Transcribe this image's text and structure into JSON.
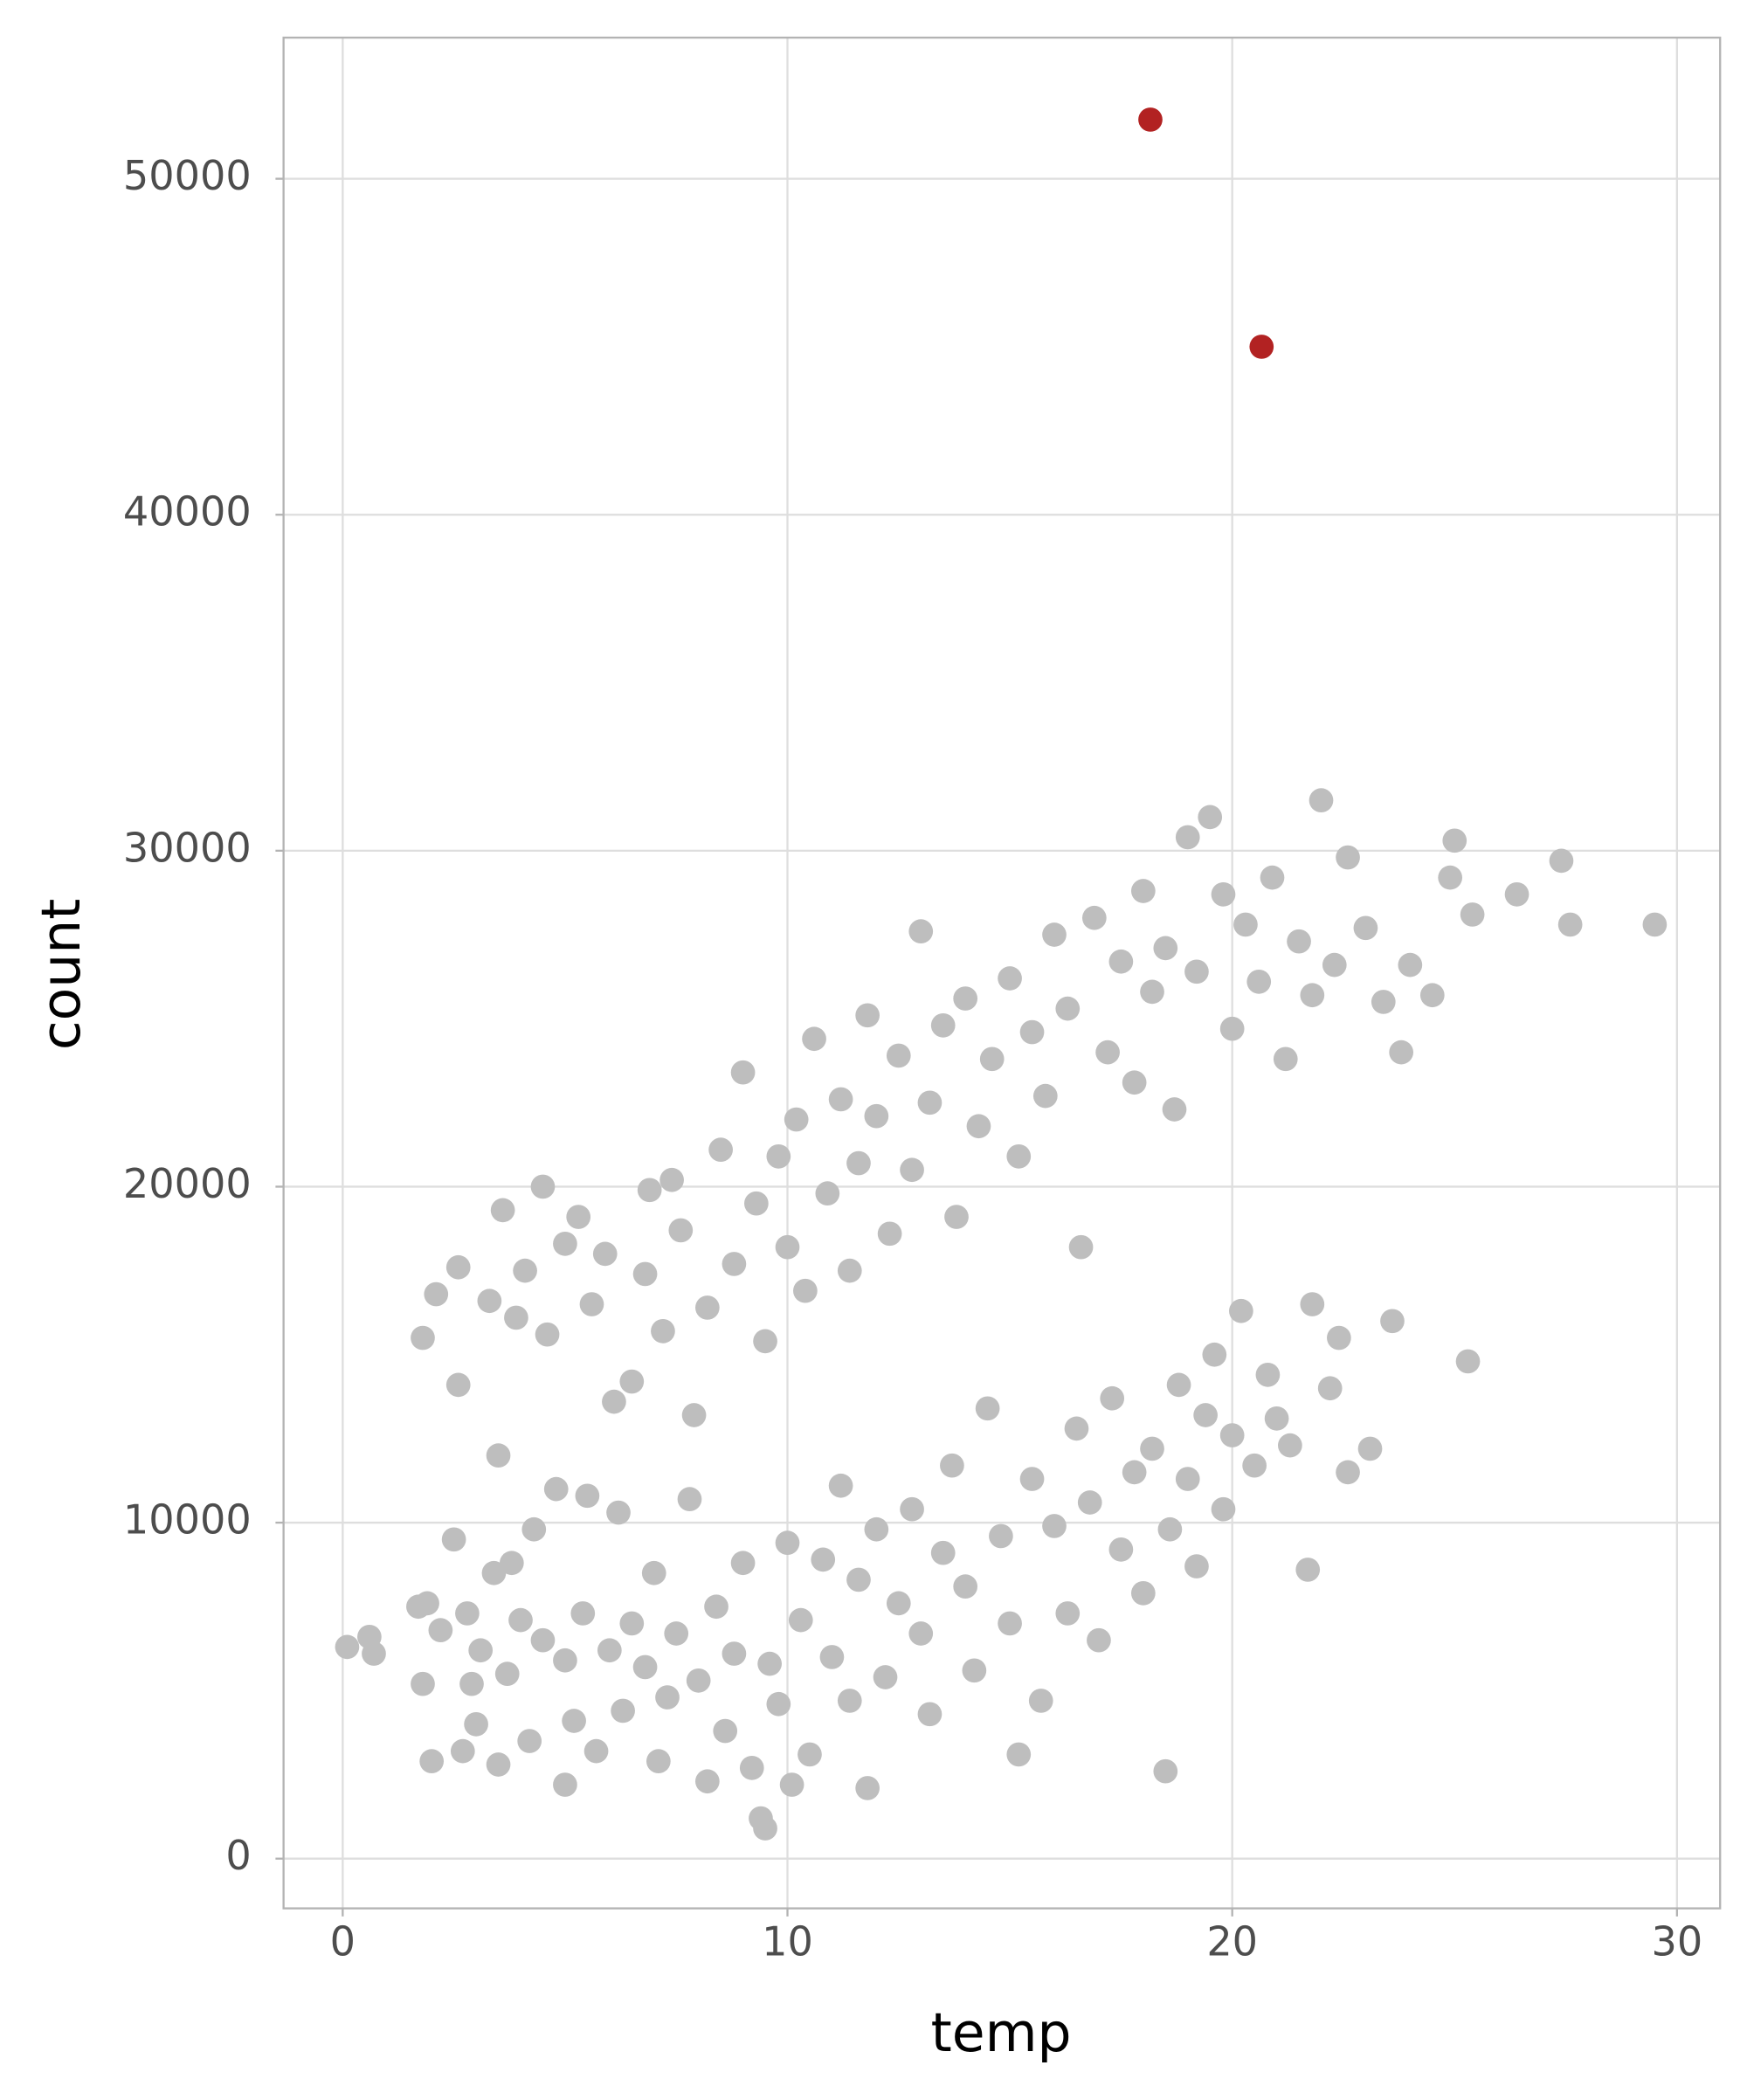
{
  "chart_data": {
    "type": "scatter",
    "x_label": "temp",
    "y_label": "count",
    "xlim": [
      -1.33,
      30.97
    ],
    "ylim": [
      -1480,
      54200
    ],
    "xticks": [
      0,
      10,
      20,
      30
    ],
    "yticks": [
      0,
      10000,
      20000,
      30000,
      40000,
      50000
    ],
    "grid": true,
    "series": [
      {
        "color": "#bebebe",
        "x": [
          0.1,
          0.6,
          0.7,
          1.7,
          1.8,
          1.9,
          2.0,
          2.2,
          2.5,
          2.7,
          2.8,
          2.9,
          3.0,
          3.1,
          3.4,
          3.5,
          3.7,
          3.8,
          4.0,
          4.2,
          4.3,
          4.5,
          4.8,
          5.0,
          5.0,
          5.2,
          5.4,
          5.5,
          5.7,
          6.0,
          6.2,
          6.3,
          6.5,
          6.8,
          7.0,
          7.1,
          7.3,
          7.5,
          7.8,
          8.0,
          8.2,
          8.4,
          8.6,
          8.8,
          9.0,
          9.2,
          9.4,
          9.5,
          9.6,
          9.8,
          10.0,
          10.1,
          10.3,
          10.5,
          10.8,
          11.0,
          11.2,
          11.4,
          11.6,
          11.8,
          12.0,
          12.2,
          12.5,
          12.8,
          13.0,
          13.2,
          13.5,
          13.7,
          14.0,
          14.2,
          14.5,
          14.8,
          15.0,
          15.2,
          15.5,
          15.7,
          16.0,
          16.3,
          16.5,
          16.8,
          17.0,
          17.3,
          17.5,
          17.8,
          18.0,
          18.2,
          18.5,
          18.6,
          18.8,
          19.0,
          19.2,
          19.4,
          19.6,
          19.8,
          20.0,
          20.2,
          20.5,
          20.8,
          21.0,
          21.3,
          21.7,
          21.8,
          22.2,
          22.4,
          22.6,
          23.1,
          23.6,
          25.3,
          1.8,
          2.1,
          2.6,
          2.6,
          3.3,
          3.5,
          3.6,
          3.9,
          4.1,
          4.5,
          4.6,
          5.0,
          5.3,
          5.6,
          5.9,
          6.1,
          6.5,
          6.8,
          6.9,
          7.2,
          7.4,
          7.6,
          7.9,
          8.2,
          8.5,
          8.8,
          9.0,
          9.3,
          9.5,
          9.8,
          10.0,
          10.2,
          10.4,
          10.6,
          10.9,
          11.2,
          11.4,
          11.6,
          11.8,
          12.0,
          12.3,
          12.5,
          12.8,
          13.0,
          13.2,
          13.5,
          13.8,
          14.0,
          14.3,
          14.6,
          15.0,
          15.2,
          15.5,
          15.8,
          16.0,
          16.3,
          16.6,
          16.9,
          17.2,
          17.5,
          17.8,
          18.0,
          18.2,
          18.5,
          18.7,
          19.0,
          19.2,
          19.5,
          19.8,
          20.0,
          20.3,
          20.6,
          20.9,
          21.2,
          21.5,
          21.8,
          22.0,
          22.3,
          22.6,
          23.0,
          23.4,
          23.8,
          24.0,
          24.5,
          24.9,
          25.0,
          25.4,
          26.4,
          27.4,
          27.6,
          29.5
        ],
        "values": [
          6300,
          6600,
          6100,
          7500,
          5200,
          7600,
          2900,
          6800,
          9500,
          3200,
          7300,
          5200,
          4000,
          6200,
          8500,
          2800,
          5500,
          8800,
          7100,
          3500,
          9800,
          6500,
          11000,
          5900,
          2200,
          4100,
          7300,
          10800,
          3200,
          6200,
          10300,
          4400,
          7000,
          5700,
          8500,
          2900,
          4800,
          6700,
          10700,
          5300,
          2300,
          7500,
          3800,
          6100,
          8800,
          2700,
          1200,
          900,
          5800,
          4600,
          9400,
          2200,
          7100,
          3100,
          8900,
          6000,
          11100,
          4700,
          8300,
          2100,
          9800,
          5400,
          7600,
          10400,
          6700,
          4300,
          9100,
          11700,
          8100,
          5600,
          13400,
          9600,
          7000,
          3100,
          11300,
          4700,
          9900,
          7300,
          12800,
          10600,
          6500,
          13700,
          9200,
          11500,
          7900,
          12200,
          2600,
          9800,
          14100,
          11300,
          8700,
          13200,
          15000,
          10400,
          12600,
          16300,
          11700,
          14400,
          13100,
          12300,
          8600,
          16500,
          14000,
          15500,
          11500,
          12200,
          16000,
          14800,
          15500,
          16800,
          17600,
          14100,
          16600,
          12000,
          19300,
          16100,
          17500,
          20000,
          15600,
          18300,
          19100,
          16500,
          18000,
          13600,
          14200,
          17400,
          19900,
          15700,
          20200,
          18700,
          13200,
          16400,
          21100,
          17700,
          23400,
          19500,
          15400,
          20900,
          18200,
          22000,
          16900,
          24400,
          19800,
          22600,
          17500,
          20700,
          25100,
          22100,
          18600,
          23900,
          20500,
          27600,
          22500,
          24800,
          19100,
          25600,
          21800,
          23800,
          26200,
          20900,
          24600,
          22700,
          27500,
          25300,
          18200,
          28000,
          24000,
          26700,
          23100,
          28800,
          25800,
          27100,
          22300,
          30400,
          26400,
          31000,
          28700,
          24700,
          27800,
          26100,
          29200,
          23800,
          27300,
          25700,
          31500,
          26600,
          29800,
          27700,
          25500,
          24000,
          26600,
          25700,
          29200,
          30300,
          28100,
          28700,
          29700,
          27800,
          27800
        ]
      },
      {
        "color": "#b22222",
        "x": [
          18.16,
          20.66
        ],
        "values": [
          51760,
          45000
        ]
      }
    ]
  }
}
